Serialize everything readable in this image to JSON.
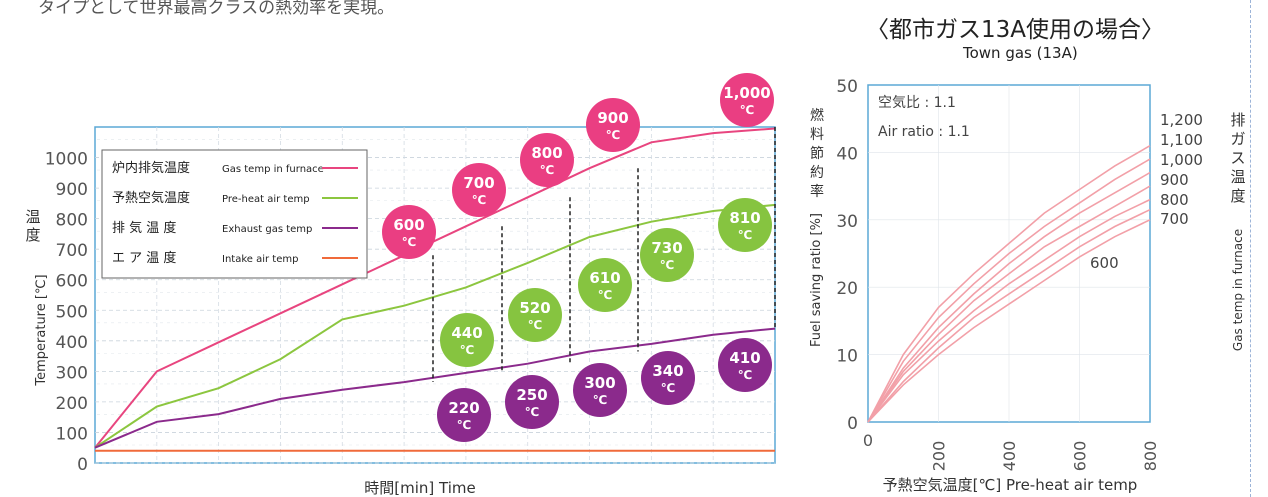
{
  "intro_text": "タイプとして世界最高クラスの熱効率を実現。",
  "left_chart": {
    "type": "line",
    "xlabel": "時間[min] Time",
    "ylabel_jp": "温度",
    "ylabel_unit": "[℃]",
    "ylabel_en": "Temperature [℃]",
    "ylim": [
      0,
      1000
    ],
    "yticks": [
      "0",
      "100",
      "200",
      "300",
      "400",
      "500",
      "600",
      "700",
      "800",
      "900",
      "1000"
    ],
    "legend": [
      {
        "jp": "炉内排気温度",
        "en": "Gas temp in furnace",
        "color": "#e8457f"
      },
      {
        "jp": "予熱空気温度",
        "en": "Pre-heat air temp",
        "color": "#8cc63f"
      },
      {
        "jp": "排 気 温 度",
        "en": "Exhaust gas temp",
        "color": "#8b2a8c"
      },
      {
        "jp": "エ ア 温 度",
        "en": "Intake air temp",
        "color": "#f06a3a"
      }
    ],
    "series": [
      {
        "name": "炉内排気温度",
        "color": "#e8457f",
        "values": [
          50,
          300,
          395,
          490,
          585,
          680,
          775,
          870,
          965,
          1050,
          1080,
          1095
        ]
      },
      {
        "name": "予熱空気温度",
        "color": "#8cc63f",
        "values": [
          50,
          185,
          245,
          340,
          470,
          515,
          575,
          655,
          740,
          790,
          825,
          845
        ]
      },
      {
        "name": "排気温度",
        "color": "#8b2a8c",
        "values": [
          50,
          135,
          160,
          210,
          240,
          265,
          295,
          325,
          365,
          390,
          420,
          440
        ]
      },
      {
        "name": "エア温度",
        "color": "#f06a3a",
        "values": [
          40,
          40,
          40,
          40,
          40,
          40,
          40,
          40,
          40,
          40,
          40,
          40
        ]
      }
    ],
    "bubbles_pink": [
      "600",
      "700",
      "800",
      "900",
      "1,000"
    ],
    "bubbles_green": [
      "440",
      "520",
      "610",
      "730",
      "810"
    ],
    "bubbles_purple": [
      "220",
      "250",
      "300",
      "340",
      "410"
    ],
    "deg_label": "℃"
  },
  "right_chart": {
    "type": "line",
    "title": "〈都市ガス13A使用の場合〉",
    "subtitle": "Town gas (13A)",
    "xlabel": "予熱空気温度[℃] Pre-heat air temp",
    "ylabel_jp": "燃料節約率",
    "ylabel_en": "Fuel saving ratio [%]",
    "y2label_jp": "排ガス温度",
    "y2label_unit": "[℃]",
    "y2label_en": "Gas temp in furnace",
    "xlim": [
      0,
      800
    ],
    "ylim": [
      0,
      50
    ],
    "xticks": [
      "0",
      "200",
      "400",
      "600",
      "800"
    ],
    "yticks": [
      "0",
      "10",
      "20",
      "30",
      "40",
      "50"
    ],
    "note1": "空気比 : 1.1",
    "note2": "Air ratio : 1.1",
    "series": [
      {
        "name": "1,200",
        "points": [
          [
            0,
            0
          ],
          [
            100,
            10
          ],
          [
            200,
            17
          ],
          [
            300,
            22
          ],
          [
            400,
            26.5
          ],
          [
            500,
            31
          ],
          [
            600,
            34.5
          ],
          [
            700,
            38
          ],
          [
            800,
            41
          ]
        ]
      },
      {
        "name": "1,100",
        "points": [
          [
            0,
            0
          ],
          [
            100,
            9
          ],
          [
            200,
            15.5
          ],
          [
            300,
            20.5
          ],
          [
            400,
            25
          ],
          [
            500,
            29
          ],
          [
            600,
            32.5
          ],
          [
            700,
            36
          ],
          [
            800,
            39
          ]
        ]
      },
      {
        "name": "1,000",
        "points": [
          [
            0,
            0
          ],
          [
            100,
            8
          ],
          [
            200,
            14
          ],
          [
            300,
            19
          ],
          [
            400,
            23.5
          ],
          [
            500,
            27.5
          ],
          [
            600,
            31
          ],
          [
            700,
            34
          ],
          [
            800,
            37
          ]
        ]
      },
      {
        "name": "900",
        "points": [
          [
            0,
            0
          ],
          [
            100,
            7.5
          ],
          [
            200,
            13
          ],
          [
            300,
            18
          ],
          [
            400,
            22
          ],
          [
            500,
            26
          ],
          [
            600,
            29
          ],
          [
            700,
            32
          ],
          [
            800,
            35
          ]
        ]
      },
      {
        "name": "800",
        "points": [
          [
            0,
            0
          ],
          [
            100,
            7
          ],
          [
            200,
            12
          ],
          [
            300,
            16.5
          ],
          [
            400,
            20.5
          ],
          [
            500,
            24
          ],
          [
            600,
            27.5
          ],
          [
            700,
            30.5
          ],
          [
            800,
            33
          ]
        ]
      },
      {
        "name": "700",
        "points": [
          [
            0,
            0
          ],
          [
            100,
            6
          ],
          [
            200,
            11
          ],
          [
            300,
            15.5
          ],
          [
            400,
            19
          ],
          [
            500,
            22.5
          ],
          [
            600,
            26
          ],
          [
            700,
            29
          ],
          [
            800,
            31.5
          ]
        ]
      },
      {
        "name": "600",
        "points": [
          [
            0,
            0
          ],
          [
            100,
            5.5
          ],
          [
            200,
            10
          ],
          [
            300,
            14
          ],
          [
            400,
            17.5
          ],
          [
            500,
            21
          ],
          [
            600,
            24.5
          ],
          [
            700,
            27.5
          ],
          [
            800,
            30
          ]
        ]
      }
    ]
  }
}
